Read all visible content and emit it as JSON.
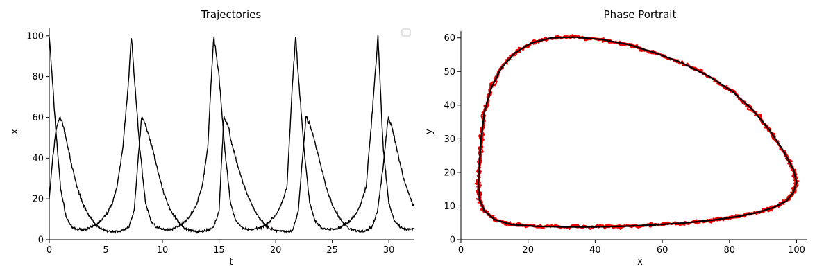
{
  "chart_data": [
    {
      "type": "line",
      "title": "Trajectories",
      "xlabel": "t",
      "ylabel": "x",
      "xlim": [
        0,
        32.2
      ],
      "ylim": [
        0,
        104
      ],
      "xticks": [
        "0",
        "5",
        "10",
        "15",
        "20",
        "25",
        "30"
      ],
      "yticks": [
        "0",
        "20",
        "40",
        "60",
        "80",
        "100"
      ],
      "grid": false,
      "legend": "top-right (empty)",
      "colors": {
        "main": "#000000",
        "noise": "#cc0000"
      },
      "series": [
        {
          "period": 7.26,
          "t": [
            0,
            0.5,
            1,
            1.5,
            2,
            2.5,
            3,
            3.5,
            4,
            4.5,
            5,
            5.5,
            6,
            6.5,
            7,
            7.26,
            7.5,
            8,
            8.5,
            9,
            9.5,
            10,
            10.5,
            11,
            11.5,
            12,
            12.5,
            13,
            13.5,
            14,
            14.52,
            15,
            15.5,
            16,
            16.5,
            17,
            17.5,
            18,
            18.5,
            19,
            19.5,
            20,
            20.5,
            21,
            21.5,
            21.78,
            22,
            22.5,
            23,
            23.5,
            24,
            24.5,
            25,
            25.5,
            26,
            26.5,
            27,
            27.5,
            28,
            28.5,
            29.04,
            29.5,
            30,
            30.5,
            31,
            31.5,
            32.2
          ],
          "values": [
            100,
            60,
            25,
            11,
            6,
            5,
            5,
            5.5,
            7,
            9,
            12,
            17,
            26,
            45,
            78,
            100,
            80,
            45,
            18,
            9,
            6,
            5,
            5,
            5.5,
            7,
            9,
            12,
            17,
            26,
            45,
            100,
            80,
            45,
            18,
            9,
            6,
            5,
            5,
            5.5,
            7,
            9,
            12,
            17,
            26,
            78,
            100,
            80,
            45,
            18,
            9,
            6,
            5,
            5,
            5.5,
            7,
            9,
            12,
            17,
            26,
            60,
            100,
            45,
            18,
            9,
            6,
            5,
            5
          ]
        },
        {
          "period": 7.26,
          "t": [
            0,
            0.3,
            0.6,
            0.9,
            1.2,
            1.6,
            2,
            2.5,
            3,
            3.5,
            4,
            4.5,
            5,
            5.5,
            6,
            6.5,
            7,
            7.5,
            7.8,
            8.16,
            8.5,
            9,
            9.5,
            10,
            10.5,
            11,
            11.5,
            12,
            12.5,
            13,
            13.5,
            14,
            14.5,
            15,
            15.42,
            15.8,
            16.2,
            17,
            17.5,
            18,
            18.5,
            19,
            19.5,
            20,
            20.5,
            21,
            21.5,
            22,
            22.3,
            22.68,
            23,
            23.5,
            24,
            24.5,
            25,
            25.5,
            26,
            26.5,
            27,
            27.5,
            28,
            28.5,
            29,
            29.5,
            29.94,
            30.3,
            30.8,
            31.3,
            32.2
          ],
          "values": [
            20,
            40,
            54,
            60,
            57,
            47,
            36,
            25,
            17,
            12,
            8,
            5.5,
            4.5,
            4,
            4,
            4.5,
            6,
            14,
            36,
            60,
            57,
            47,
            36,
            25,
            17,
            12,
            8,
            5.5,
            4.5,
            4,
            4,
            4.5,
            6,
            14,
            60,
            56,
            45,
            30,
            22,
            16,
            11,
            7.5,
            5.5,
            4.5,
            4,
            4,
            4.5,
            14,
            36,
            60,
            57,
            47,
            36,
            25,
            17,
            12,
            8,
            5.5,
            4.5,
            4,
            4.5,
            6,
            14,
            36,
            60,
            55,
            42,
            30,
            16
          ]
        }
      ]
    },
    {
      "type": "line",
      "title": "Phase Portrait",
      "xlabel": "x",
      "ylabel": "y",
      "xlim": [
        0,
        103
      ],
      "ylim": [
        0,
        62
      ],
      "xticks": [
        "0",
        "20",
        "40",
        "60",
        "80",
        "100"
      ],
      "yticks": [
        "0",
        "10",
        "20",
        "30",
        "40",
        "50",
        "60"
      ],
      "grid": false,
      "colors": {
        "main": "#000000",
        "noise": "#ee0000"
      },
      "series": [
        {
          "x": [
            5.5,
            6,
            7,
            9,
            12,
            16,
            21,
            27,
            34,
            42,
            50,
            58,
            66,
            74,
            81,
            87,
            92,
            96,
            99,
            100,
            99,
            97,
            93,
            88,
            82,
            75,
            67,
            58,
            49,
            40,
            31,
            22,
            15,
            10,
            7,
            5.5,
            5.2,
            5.5
          ],
          "y": [
            22,
            30,
            38,
            45,
            51,
            55.5,
            58.5,
            60,
            60.2,
            59.5,
            58,
            55.5,
            52.5,
            48.5,
            44,
            38.5,
            32.5,
            26.5,
            21,
            17,
            14,
            11.5,
            9.5,
            8,
            6.8,
            5.8,
            5,
            4.4,
            4,
            3.8,
            3.8,
            4,
            4.5,
            6,
            8.5,
            12,
            17,
            22
          ]
        }
      ]
    }
  ]
}
